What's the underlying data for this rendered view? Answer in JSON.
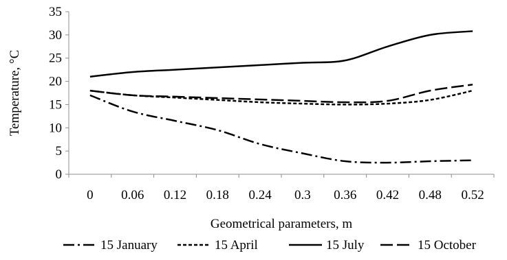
{
  "chart_data": {
    "type": "line",
    "xlabel": "Geometrical parameters, m",
    "ylabel": "Temperature, °C",
    "categories": [
      "0",
      "0.06",
      "0.12",
      "0.18",
      "0.24",
      "0.3",
      "0.36",
      "0.42",
      "0.48",
      "0.52"
    ],
    "x": [
      0,
      0.06,
      0.12,
      0.18,
      0.24,
      0.3,
      0.36,
      0.42,
      0.48,
      0.52
    ],
    "yticks": [
      0,
      5,
      10,
      15,
      20,
      25,
      30,
      35
    ],
    "ylim": [
      0,
      35
    ],
    "grid": false,
    "legend_position": "bottom",
    "series": [
      {
        "name": "15 January",
        "style": "dash-dot",
        "color": "#000000",
        "values": [
          17,
          13.5,
          11.5,
          9.5,
          6.5,
          4.5,
          2.8,
          2.5,
          2.8,
          3
        ]
      },
      {
        "name": "15 April",
        "style": "short-dash",
        "color": "#000000",
        "values": [
          18,
          17,
          16.5,
          16,
          15.5,
          15.2,
          15,
          15.2,
          16,
          18
        ]
      },
      {
        "name": "15 July",
        "style": "solid",
        "color": "#000000",
        "values": [
          21,
          22,
          22.5,
          23,
          23.5,
          24,
          24.5,
          27.5,
          30,
          30.8
        ]
      },
      {
        "name": "15 October",
        "style": "long-dash",
        "color": "#000000",
        "values": [
          18,
          17,
          16.7,
          16.4,
          16.1,
          15.8,
          15.5,
          15.8,
          18,
          19.3
        ]
      }
    ]
  }
}
